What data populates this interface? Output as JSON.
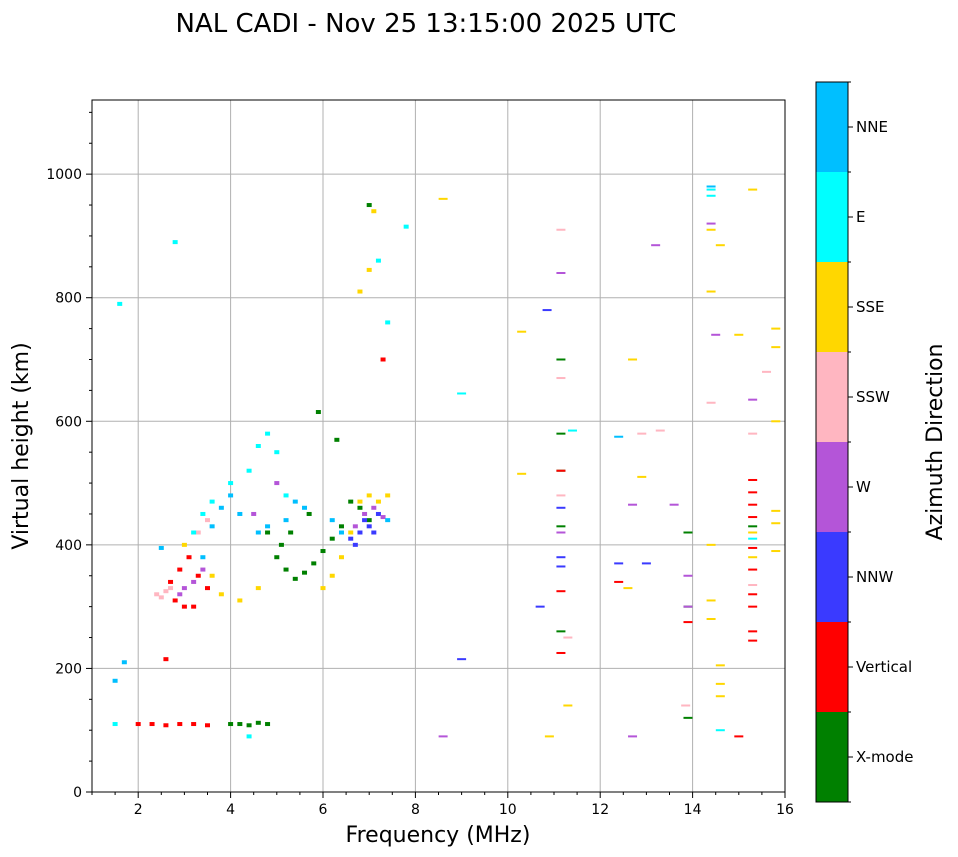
{
  "chart_data": {
    "type": "scatter",
    "title": "NAL CADI - Nov 25 13:15:00 2025 UTC",
    "xlabel": "Frequency (MHz)",
    "ylabel": "Virtual height (km)",
    "xlim": [
      1,
      16
    ],
    "ylim": [
      0,
      1120
    ],
    "xticks": [
      2,
      4,
      6,
      8,
      10,
      12,
      14,
      16
    ],
    "yticks": [
      0,
      200,
      400,
      600,
      800,
      1000
    ],
    "grid": true,
    "colorbar": {
      "label": "Azimuth Direction",
      "categories": [
        {
          "name": "X-mode",
          "color": "#008000"
        },
        {
          "name": "Vertical",
          "color": "#ff0000"
        },
        {
          "name": "NNW",
          "color": "#3a3aff"
        },
        {
          "name": "W",
          "color": "#b455d8"
        },
        {
          "name": "SSW",
          "color": "#ffb6c1"
        },
        {
          "name": "SSE",
          "color": "#ffd700"
        },
        {
          "name": "E",
          "color": "#00ffff"
        },
        {
          "name": "NNE",
          "color": "#00bfff"
        }
      ]
    },
    "series": [
      {
        "name": "X-mode",
        "points": [
          [
            4.0,
            110
          ],
          [
            4.2,
            110
          ],
          [
            4.4,
            108
          ],
          [
            4.6,
            112
          ],
          [
            4.8,
            110
          ],
          [
            5.0,
            380
          ],
          [
            5.2,
            360
          ],
          [
            5.4,
            345
          ],
          [
            5.6,
            355
          ],
          [
            5.8,
            370
          ],
          [
            6.0,
            390
          ],
          [
            5.3,
            420
          ],
          [
            5.7,
            450
          ],
          [
            5.1,
            400
          ],
          [
            4.8,
            420
          ],
          [
            6.2,
            410
          ],
          [
            6.4,
            430
          ],
          [
            6.6,
            470
          ],
          [
            6.8,
            460
          ],
          [
            7.0,
            440
          ],
          [
            5.9,
            615
          ],
          [
            6.3,
            570
          ],
          [
            7.0,
            950
          ],
          [
            11.15,
            580
          ],
          [
            11.15,
            520
          ],
          [
            11.15,
            430
          ],
          [
            11.15,
            700
          ],
          [
            11.15,
            260
          ],
          [
            13.9,
            420
          ],
          [
            13.9,
            300
          ],
          [
            13.9,
            120
          ],
          [
            15.3,
            430
          ]
        ]
      },
      {
        "name": "Vertical",
        "points": [
          [
            2.0,
            110
          ],
          [
            2.3,
            110
          ],
          [
            2.6,
            108
          ],
          [
            2.9,
            110
          ],
          [
            3.2,
            110
          ],
          [
            3.5,
            108
          ],
          [
            2.7,
            340
          ],
          [
            2.9,
            360
          ],
          [
            3.1,
            380
          ],
          [
            3.3,
            350
          ],
          [
            3.5,
            330
          ],
          [
            2.8,
            310
          ],
          [
            3.2,
            300
          ],
          [
            2.6,
            215
          ],
          [
            3.0,
            300
          ],
          [
            11.15,
            520
          ],
          [
            11.15,
            325
          ],
          [
            11.15,
            225
          ],
          [
            12.4,
            340
          ],
          [
            13.9,
            275
          ],
          [
            15.3,
            505
          ],
          [
            15.3,
            485
          ],
          [
            15.3,
            465
          ],
          [
            15.3,
            445
          ],
          [
            15.3,
            395
          ],
          [
            15.3,
            360
          ],
          [
            15.3,
            320
          ],
          [
            15.3,
            300
          ],
          [
            15.3,
            260
          ],
          [
            15.3,
            245
          ],
          [
            15.0,
            90
          ],
          [
            7.3,
            700
          ]
        ]
      },
      {
        "name": "NNW",
        "points": [
          [
            6.7,
            400
          ],
          [
            6.8,
            420
          ],
          [
            6.9,
            440
          ],
          [
            7.0,
            430
          ],
          [
            7.1,
            420
          ],
          [
            6.6,
            410
          ],
          [
            7.2,
            450
          ],
          [
            10.7,
            300
          ],
          [
            10.85,
            780
          ],
          [
            11.15,
            380
          ],
          [
            11.15,
            365
          ],
          [
            11.15,
            460
          ],
          [
            12.4,
            370
          ],
          [
            13.0,
            370
          ],
          [
            9.0,
            215
          ]
        ]
      },
      {
        "name": "W",
        "points": [
          [
            2.9,
            320
          ],
          [
            3.0,
            330
          ],
          [
            3.2,
            340
          ],
          [
            3.4,
            360
          ],
          [
            4.5,
            450
          ],
          [
            5.0,
            500
          ],
          [
            6.7,
            430
          ],
          [
            6.9,
            450
          ],
          [
            7.1,
            460
          ],
          [
            7.3,
            445
          ],
          [
            11.15,
            840
          ],
          [
            11.15,
            420
          ],
          [
            12.7,
            465
          ],
          [
            13.2,
            885
          ],
          [
            13.6,
            465
          ],
          [
            14.4,
            920
          ],
          [
            14.5,
            740
          ],
          [
            15.3,
            635
          ],
          [
            13.9,
            350
          ],
          [
            13.9,
            300
          ],
          [
            8.6,
            90
          ],
          [
            12.7,
            90
          ]
        ]
      },
      {
        "name": "SSW",
        "points": [
          [
            2.4,
            320
          ],
          [
            2.5,
            315
          ],
          [
            2.6,
            325
          ],
          [
            2.7,
            330
          ],
          [
            3.3,
            420
          ],
          [
            3.5,
            440
          ],
          [
            11.15,
            910
          ],
          [
            11.15,
            670
          ],
          [
            11.15,
            480
          ],
          [
            11.3,
            250
          ],
          [
            12.9,
            580
          ],
          [
            13.3,
            585
          ],
          [
            14.4,
            630
          ],
          [
            15.3,
            580
          ],
          [
            15.6,
            680
          ],
          [
            15.3,
            335
          ],
          [
            13.85,
            140
          ]
        ]
      },
      {
        "name": "SSE",
        "points": [
          [
            3.0,
            400
          ],
          [
            3.6,
            350
          ],
          [
            3.8,
            320
          ],
          [
            4.2,
            310
          ],
          [
            4.6,
            330
          ],
          [
            6.0,
            330
          ],
          [
            6.2,
            350
          ],
          [
            6.4,
            380
          ],
          [
            6.6,
            420
          ],
          [
            6.8,
            470
          ],
          [
            7.0,
            480
          ],
          [
            7.2,
            470
          ],
          [
            7.4,
            480
          ],
          [
            6.8,
            810
          ],
          [
            7.0,
            845
          ],
          [
            7.1,
            940
          ],
          [
            8.6,
            960
          ],
          [
            10.3,
            745
          ],
          [
            10.3,
            515
          ],
          [
            11.3,
            140
          ],
          [
            12.7,
            700
          ],
          [
            12.9,
            510
          ],
          [
            12.6,
            330
          ],
          [
            14.4,
            910
          ],
          [
            14.4,
            810
          ],
          [
            14.4,
            400
          ],
          [
            14.4,
            310
          ],
          [
            14.4,
            280
          ],
          [
            14.6,
            885
          ],
          [
            14.6,
            205
          ],
          [
            14.6,
            175
          ],
          [
            14.6,
            155
          ],
          [
            15.0,
            740
          ],
          [
            15.3,
            975
          ],
          [
            15.3,
            380
          ],
          [
            15.3,
            420
          ],
          [
            15.8,
            750
          ],
          [
            15.8,
            720
          ],
          [
            15.8,
            600
          ],
          [
            15.8,
            455
          ],
          [
            15.8,
            435
          ],
          [
            15.8,
            390
          ],
          [
            10.9,
            90
          ]
        ]
      },
      {
        "name": "E",
        "points": [
          [
            1.6,
            790
          ],
          [
            2.8,
            890
          ],
          [
            3.2,
            420
          ],
          [
            3.4,
            450
          ],
          [
            3.6,
            470
          ],
          [
            4.0,
            500
          ],
          [
            4.4,
            520
          ],
          [
            4.6,
            560
          ],
          [
            4.8,
            580
          ],
          [
            5.0,
            550
          ],
          [
            5.2,
            480
          ],
          [
            7.2,
            860
          ],
          [
            7.4,
            760
          ],
          [
            7.8,
            915
          ],
          [
            9.0,
            645
          ],
          [
            11.4,
            585
          ],
          [
            14.4,
            975
          ],
          [
            14.4,
            965
          ],
          [
            15.3,
            410
          ],
          [
            14.6,
            100
          ],
          [
            4.4,
            90
          ],
          [
            1.5,
            110
          ]
        ]
      },
      {
        "name": "NNE",
        "points": [
          [
            2.5,
            395
          ],
          [
            3.4,
            380
          ],
          [
            3.6,
            430
          ],
          [
            3.8,
            460
          ],
          [
            4.0,
            480
          ],
          [
            4.2,
            450
          ],
          [
            4.6,
            420
          ],
          [
            4.8,
            430
          ],
          [
            5.2,
            440
          ],
          [
            5.4,
            470
          ],
          [
            5.6,
            460
          ],
          [
            6.2,
            440
          ],
          [
            6.4,
            420
          ],
          [
            7.4,
            440
          ],
          [
            12.4,
            575
          ],
          [
            14.4,
            980
          ],
          [
            1.5,
            180
          ],
          [
            1.7,
            210
          ]
        ]
      }
    ]
  }
}
